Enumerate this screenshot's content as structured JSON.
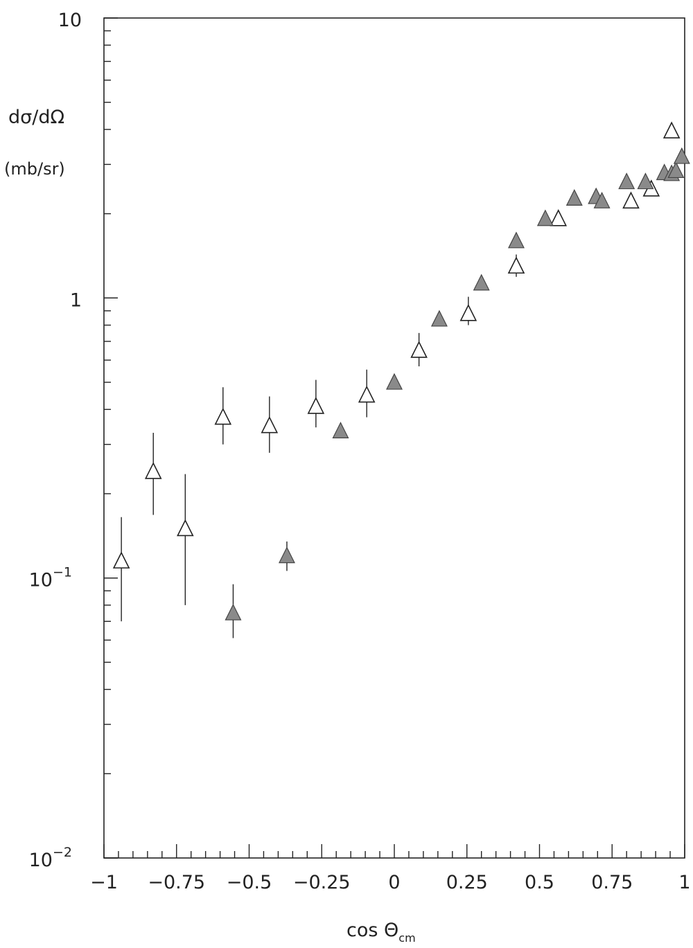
{
  "chart_data": {
    "type": "scatter",
    "title": "",
    "ylabel_line1": "dσ/dΩ",
    "ylabel_line2": "(mb/sr)",
    "xlabel_main": "cos Θ",
    "xlabel_sub": "cm",
    "xlim": [
      -1,
      1
    ],
    "ylim": [
      0.01,
      10
    ],
    "yscale": "log",
    "grid": false,
    "x_ticks": [
      {
        "value": -1,
        "label": "−1"
      },
      {
        "value": -0.75,
        "label": "−0.75"
      },
      {
        "value": -0.5,
        "label": "−0.5"
      },
      {
        "value": -0.25,
        "label": "−0.25"
      },
      {
        "value": 0,
        "label": "0"
      },
      {
        "value": 0.25,
        "label": "0.25"
      },
      {
        "value": 0.5,
        "label": "0.5"
      },
      {
        "value": 0.75,
        "label": "0.75"
      },
      {
        "value": 1,
        "label": "1"
      }
    ],
    "y_ticks": [
      {
        "value": 0.01,
        "base": "10",
        "exp": "−2"
      },
      {
        "value": 0.1,
        "base": "10",
        "exp": "−1"
      },
      {
        "value": 1,
        "base": "1",
        "exp": ""
      },
      {
        "value": 10,
        "base": "10",
        "exp": ""
      }
    ],
    "series": [
      {
        "marker": "open-triangle",
        "color": "#222222",
        "points": [
          {
            "x": -0.94,
            "y": 0.115,
            "ylo": 0.07,
            "yhi": 0.165
          },
          {
            "x": -0.83,
            "y": 0.24,
            "ylo": 0.168,
            "yhi": 0.33
          },
          {
            "x": -0.72,
            "y": 0.15,
            "ylo": 0.08,
            "yhi": 0.235
          },
          {
            "x": -0.59,
            "y": 0.375,
            "ylo": 0.3,
            "yhi": 0.48
          },
          {
            "x": -0.43,
            "y": 0.35,
            "ylo": 0.28,
            "yhi": 0.445
          },
          {
            "x": -0.27,
            "y": 0.41,
            "ylo": 0.345,
            "yhi": 0.51
          },
          {
            "x": -0.095,
            "y": 0.45,
            "ylo": 0.375,
            "yhi": 0.555
          },
          {
            "x": 0.085,
            "y": 0.65,
            "ylo": 0.57,
            "yhi": 0.75
          },
          {
            "x": 0.255,
            "y": 0.88,
            "ylo": 0.8,
            "yhi": 1.01
          },
          {
            "x": 0.42,
            "y": 1.3,
            "ylo": 1.19,
            "yhi": 1.43
          },
          {
            "x": 0.565,
            "y": 1.92,
            "ylo": 1.85,
            "yhi": 2.0
          },
          {
            "x": 0.815,
            "y": 2.22,
            "ylo": 2.13,
            "yhi": 2.31
          },
          {
            "x": 0.885,
            "y": 2.45,
            "ylo": 2.36,
            "yhi": 2.53
          },
          {
            "x": 0.955,
            "y": 3.95,
            "ylo": 3.95,
            "yhi": 3.95
          }
        ]
      },
      {
        "marker": "filled-triangle",
        "color": "#8a8a8a",
        "points": [
          {
            "x": -0.555,
            "y": 0.075,
            "ylo": 0.061,
            "yhi": 0.095
          },
          {
            "x": -0.37,
            "y": 0.12,
            "ylo": 0.106,
            "yhi": 0.135
          },
          {
            "x": -0.185,
            "y": 0.335,
            "ylo": 0.33,
            "yhi": 0.34
          },
          {
            "x": 0.0,
            "y": 0.5,
            "ylo": 0.5,
            "yhi": 0.5
          },
          {
            "x": 0.155,
            "y": 0.84,
            "ylo": 0.84,
            "yhi": 0.84
          },
          {
            "x": 0.3,
            "y": 1.13,
            "ylo": 1.13,
            "yhi": 1.13
          },
          {
            "x": 0.42,
            "y": 1.6,
            "ylo": 1.6,
            "yhi": 1.6
          },
          {
            "x": 0.52,
            "y": 1.92,
            "ylo": 1.92,
            "yhi": 1.92
          },
          {
            "x": 0.62,
            "y": 2.27,
            "ylo": 2.27,
            "yhi": 2.27
          },
          {
            "x": 0.695,
            "y": 2.3,
            "ylo": 2.2,
            "yhi": 2.42
          },
          {
            "x": 0.715,
            "y": 2.22,
            "ylo": 2.22,
            "yhi": 2.22
          },
          {
            "x": 0.8,
            "y": 2.6,
            "ylo": 2.52,
            "yhi": 2.68
          },
          {
            "x": 0.865,
            "y": 2.6,
            "ylo": 2.6,
            "yhi": 2.6
          },
          {
            "x": 0.93,
            "y": 2.8,
            "ylo": 2.8,
            "yhi": 2.8
          },
          {
            "x": 0.955,
            "y": 2.78,
            "ylo": 2.78,
            "yhi": 2.78
          },
          {
            "x": 0.97,
            "y": 2.85,
            "ylo": 2.85,
            "yhi": 2.85
          },
          {
            "x": 0.99,
            "y": 3.2,
            "ylo": 3.2,
            "yhi": 3.2
          }
        ]
      }
    ]
  }
}
